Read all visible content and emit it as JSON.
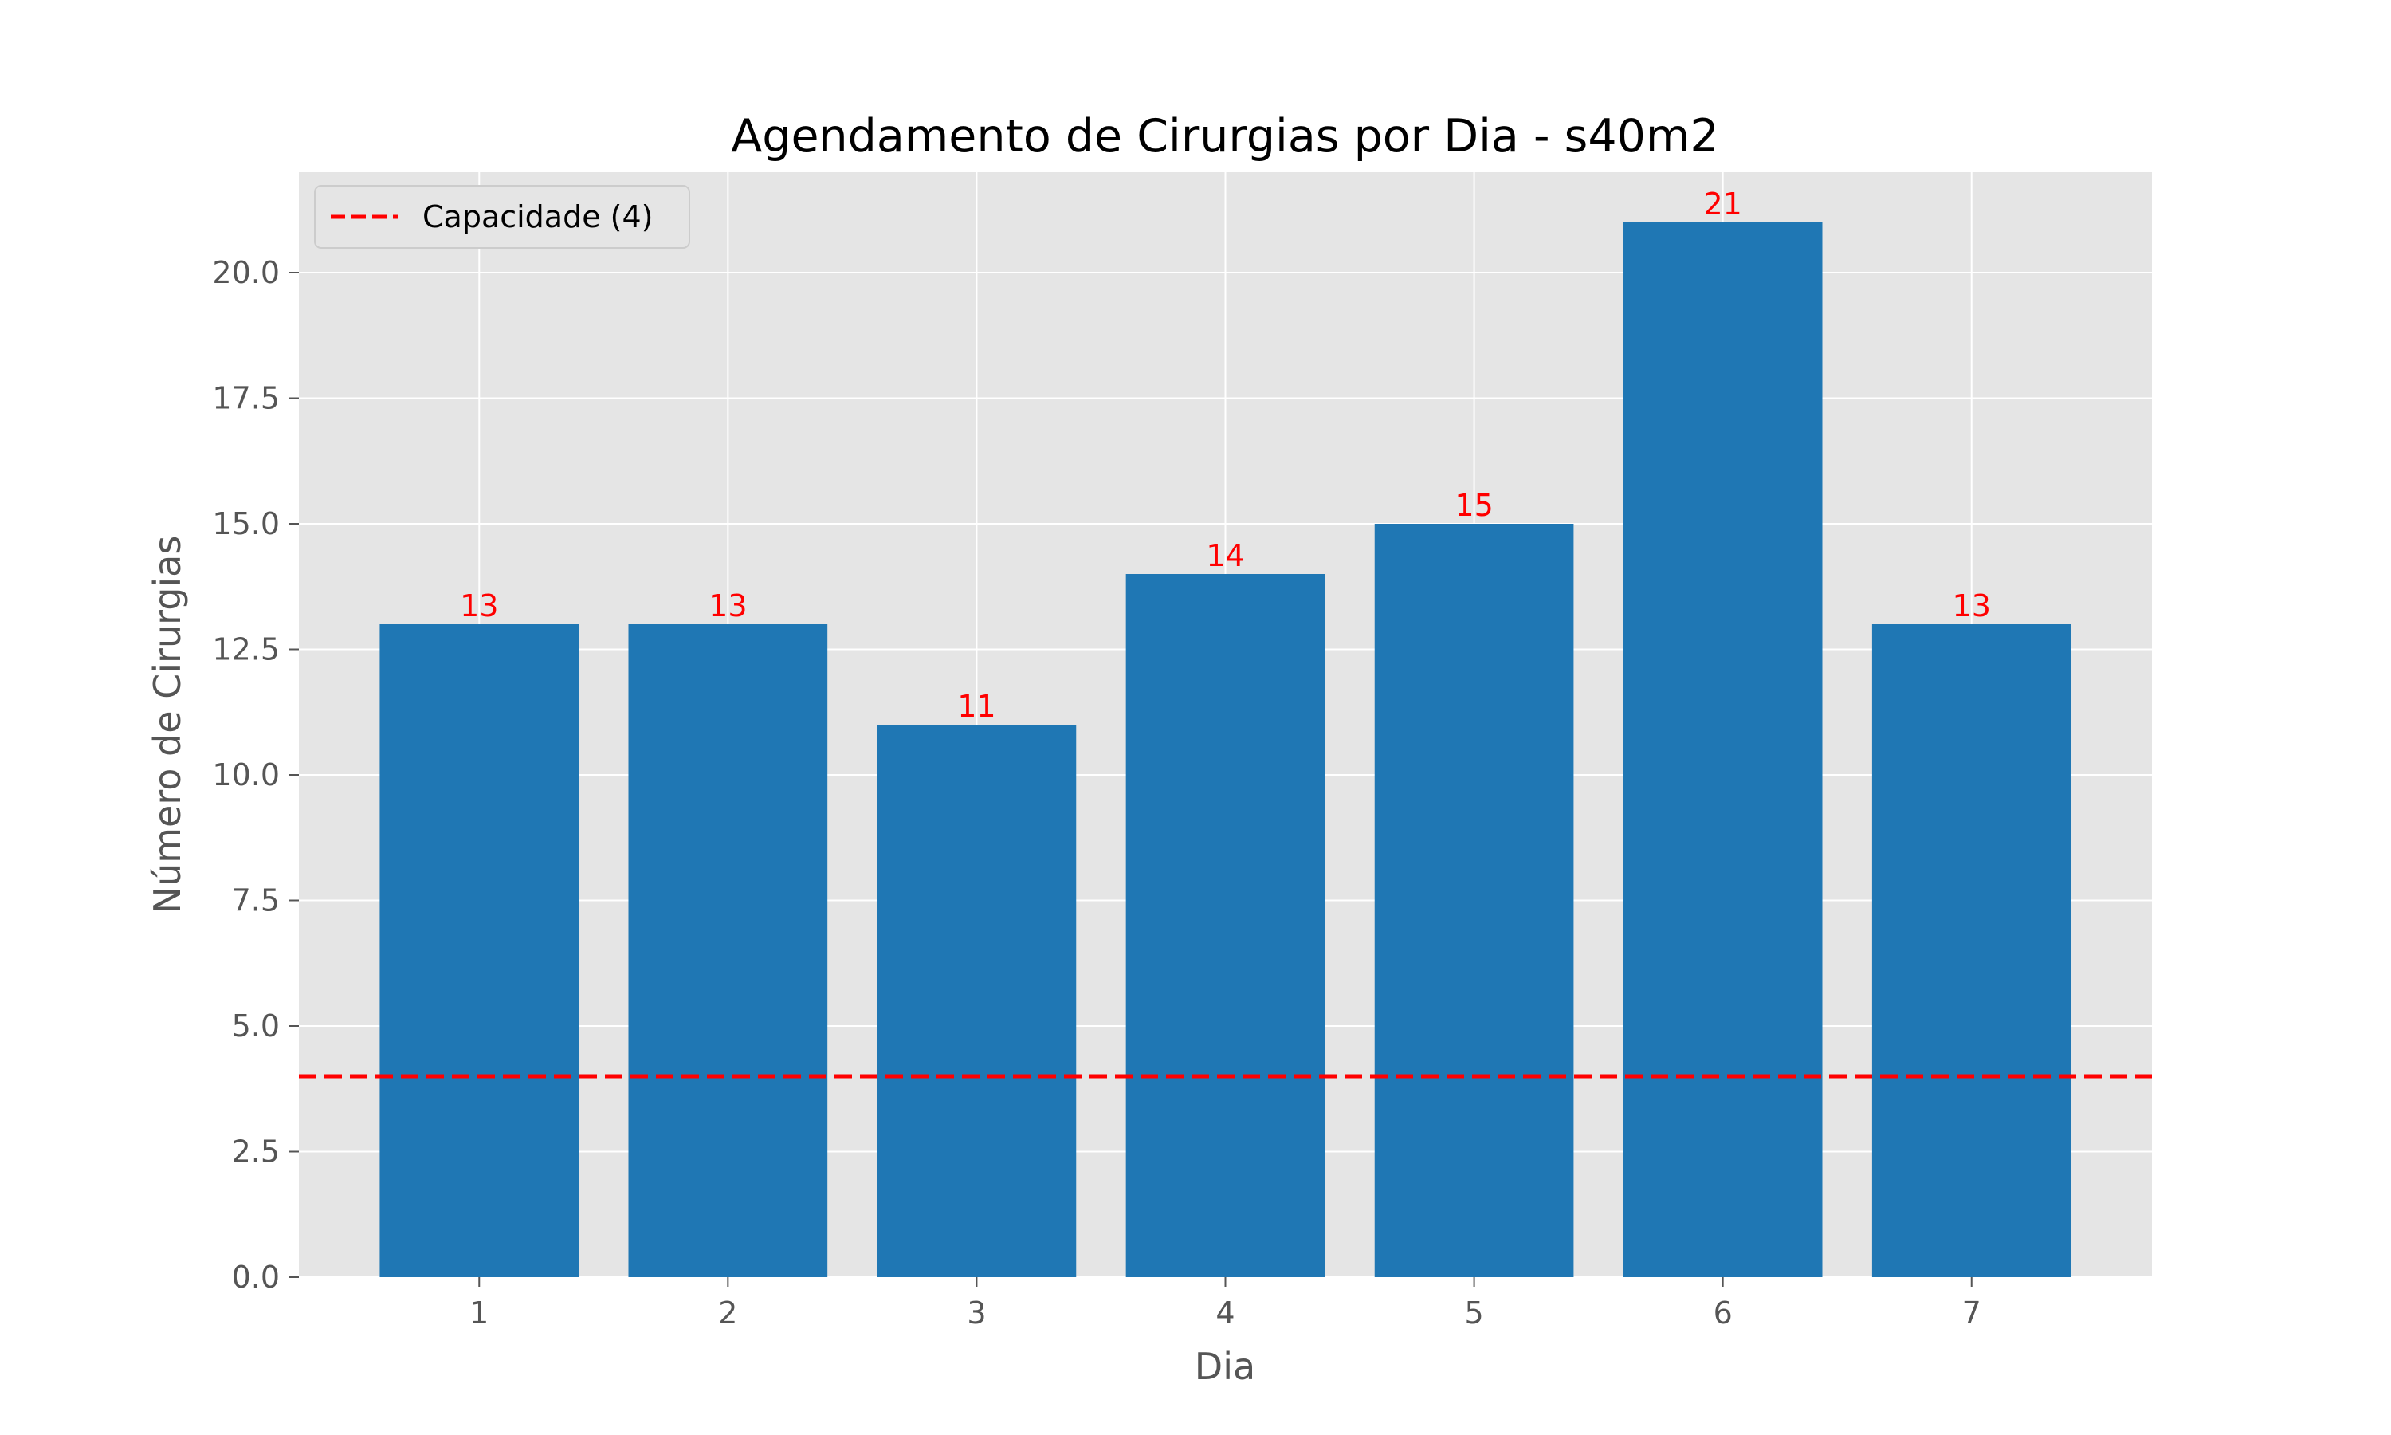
{
  "chart_data": {
    "type": "bar",
    "title": "Agendamento de Cirurgias por Dia - s40m2",
    "xlabel": "Dia",
    "ylabel": "Número de Cirurgias",
    "categories": [
      "1",
      "2",
      "3",
      "4",
      "5",
      "6",
      "7"
    ],
    "values": [
      13,
      13,
      11,
      14,
      15,
      21,
      13
    ],
    "value_labels": [
      "13",
      "13",
      "11",
      "14",
      "15",
      "21",
      "13"
    ],
    "ylim": [
      0,
      22
    ],
    "y_ticks": [
      0,
      2.5,
      5,
      7.5,
      10,
      12.5,
      15,
      17.5,
      20
    ],
    "y_tick_labels": [
      "0.0",
      "2.5",
      "5.0",
      "7.5",
      "10.0",
      "12.5",
      "15.0",
      "17.5",
      "20.0"
    ],
    "grid": true,
    "reference_line": {
      "label": "Capacidade (4)",
      "value": 4,
      "color": "#ff0000",
      "style": "dashed"
    },
    "legend": {
      "placement": "top-left",
      "entries": [
        "Capacidade (4)"
      ]
    },
    "colors": {
      "bar": "#1f77b4",
      "plot_background": "#e5e5e5",
      "grid": "#ffffff",
      "value_label": "#ff0000"
    }
  }
}
